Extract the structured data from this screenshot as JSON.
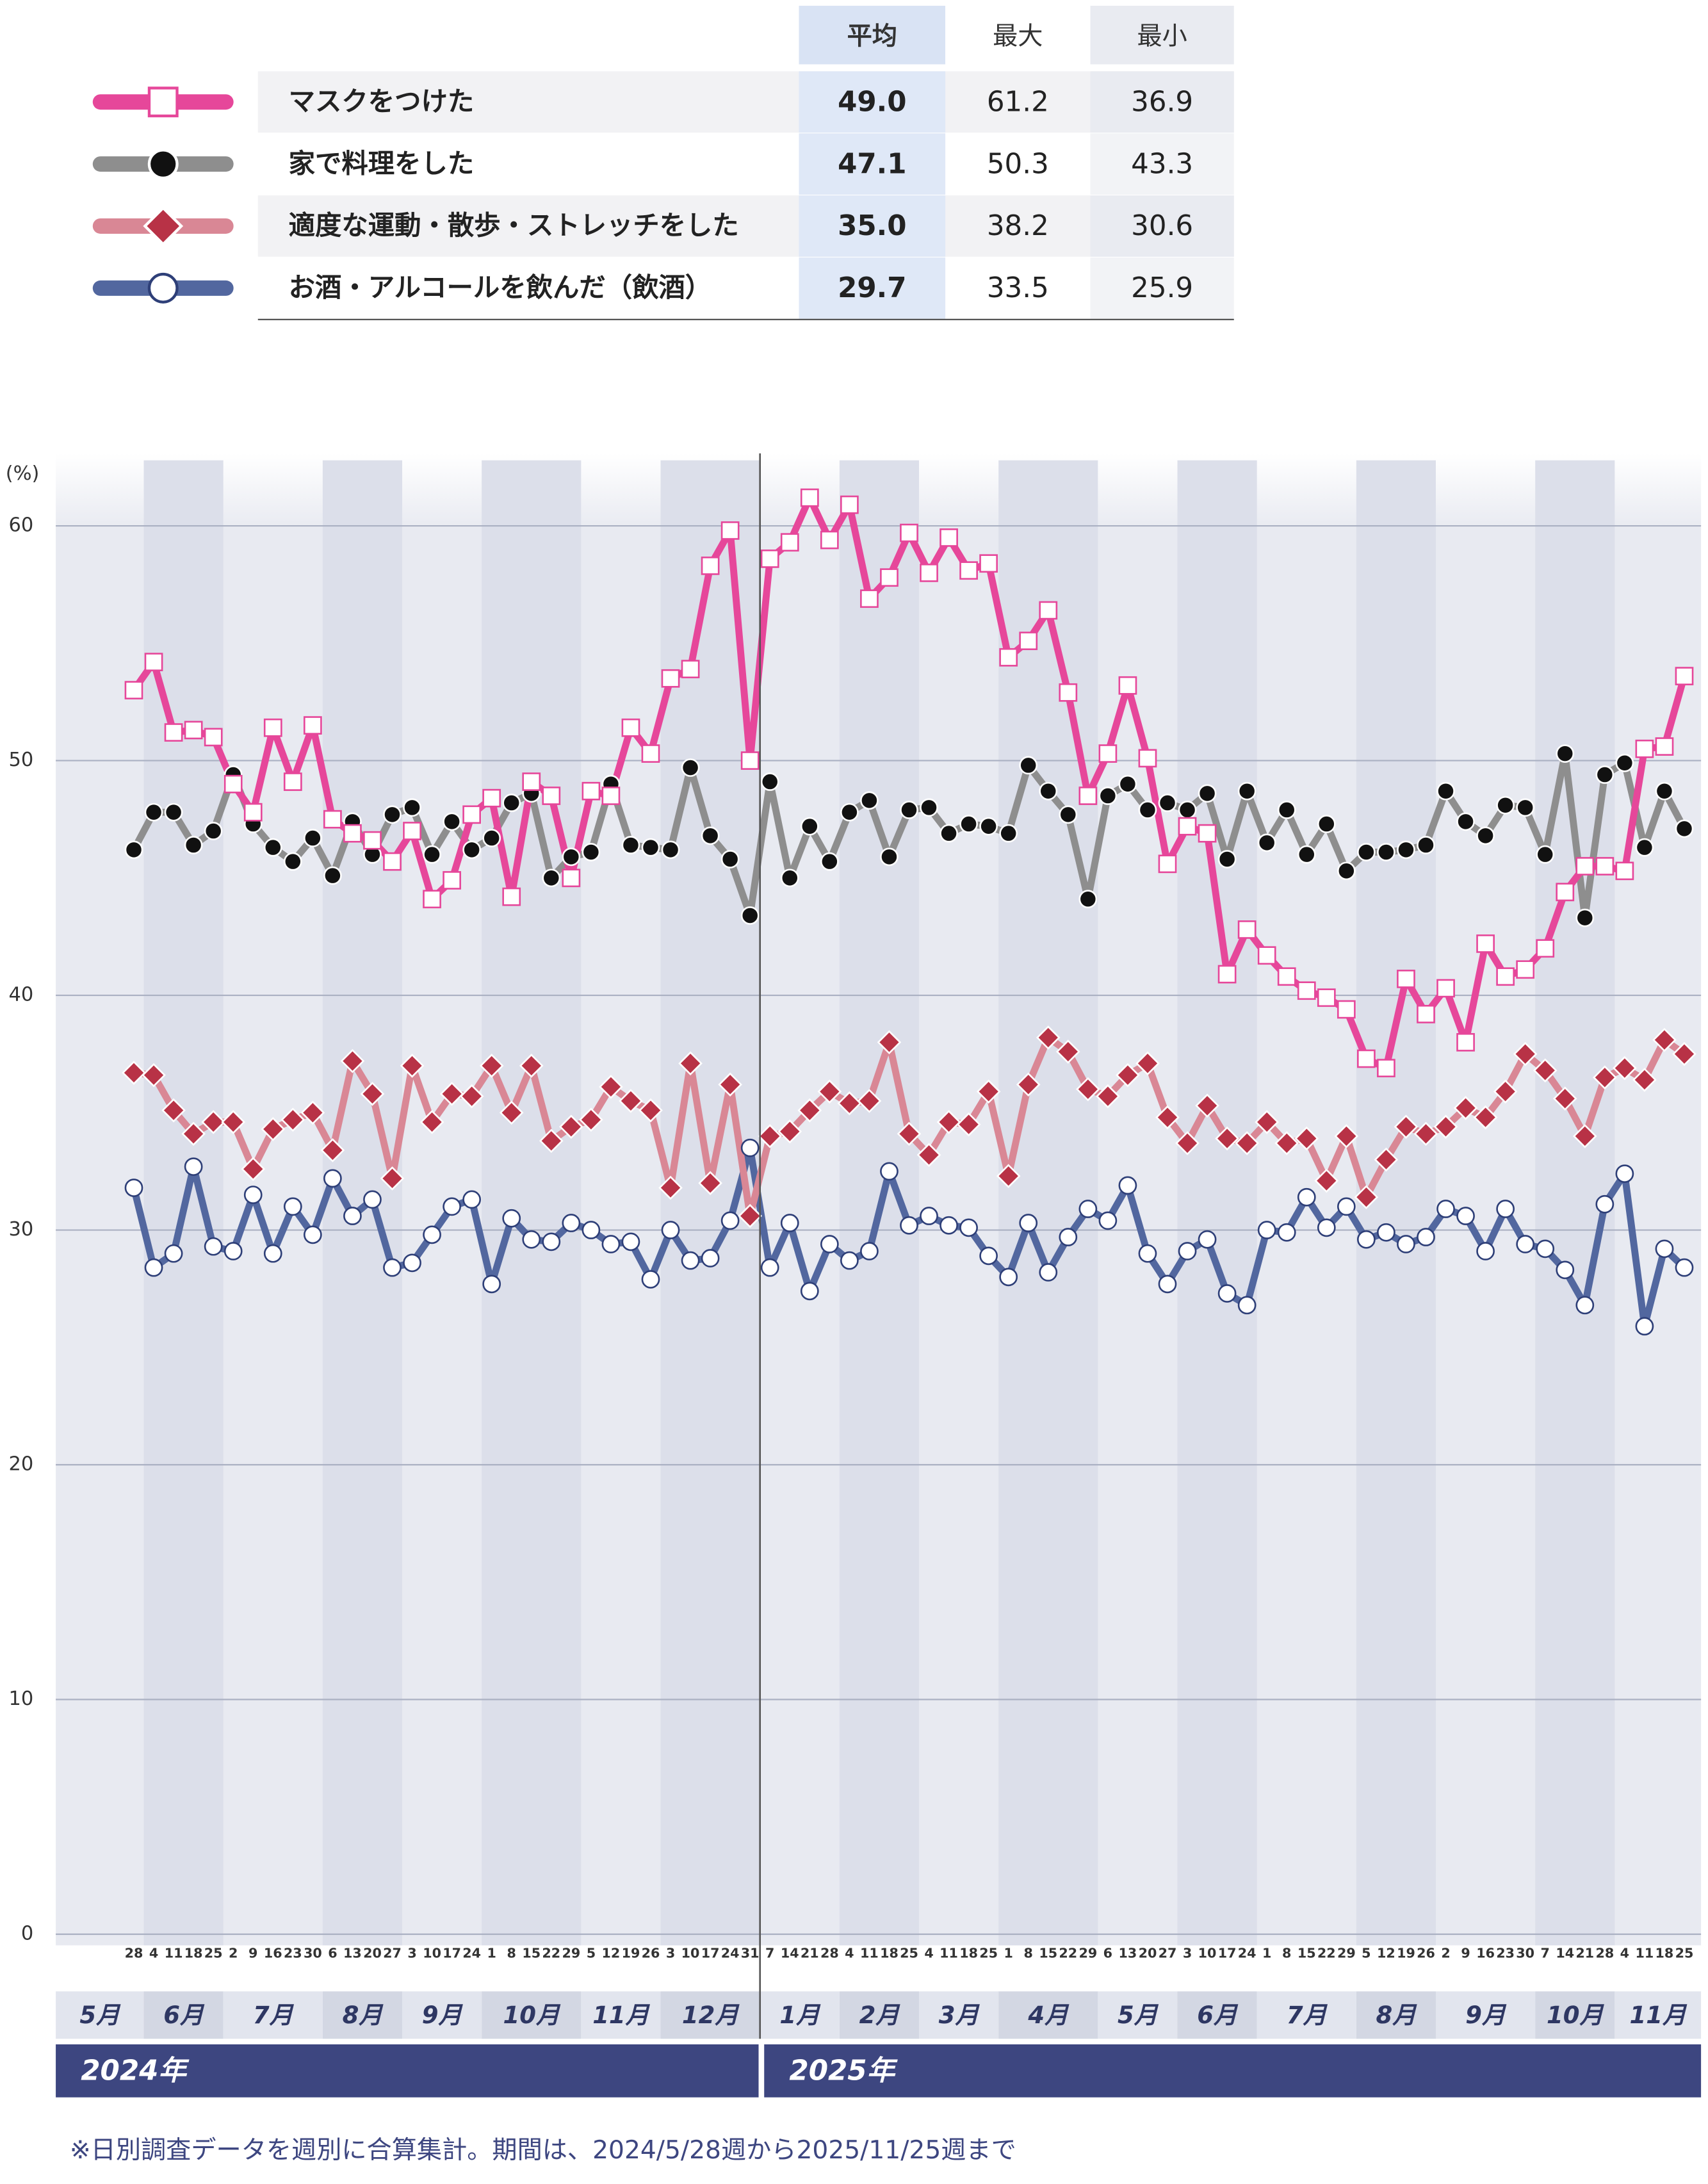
{
  "chart_data": {
    "type": "line",
    "y_unit": "(%)",
    "footnote": "※日別調査データを週別に合算集計。期間は、2024/5/28週から2025/11/25週まで",
    "table": {
      "columns": [
        "平均",
        "最大",
        "最小"
      ]
    },
    "categories": [
      "28",
      "4",
      "11",
      "18",
      "25",
      "2",
      "9",
      "16",
      "23",
      "30",
      "6",
      "13",
      "20",
      "27",
      "3",
      "10",
      "17",
      "24",
      "1",
      "8",
      "15",
      "22",
      "29",
      "5",
      "12",
      "19",
      "26",
      "3",
      "10",
      "17",
      "24",
      "31",
      "7",
      "14",
      "21",
      "28",
      "4",
      "11",
      "18",
      "25",
      "4",
      "11",
      "18",
      "25",
      "1",
      "8",
      "15",
      "22",
      "29",
      "6",
      "13",
      "20",
      "27",
      "3",
      "10",
      "17",
      "24",
      "1",
      "8",
      "15",
      "22",
      "29",
      "5",
      "12",
      "19",
      "26",
      "2",
      "9",
      "16",
      "23",
      "30",
      "7",
      "14",
      "21",
      "28",
      "4",
      "11",
      "18",
      "25"
    ],
    "months": [
      "5月",
      "6月",
      "7月",
      "8月",
      "9月",
      "10月",
      "11月",
      "12月",
      "1月",
      "2月",
      "3月",
      "4月",
      "5月",
      "6月",
      "7月",
      "8月",
      "9月",
      "10月",
      "11月"
    ],
    "years": [
      "2024年",
      "2025年"
    ],
    "ylim": [
      0,
      60
    ],
    "yticks": [
      0,
      10,
      20,
      30,
      40,
      50,
      60
    ],
    "grid": true,
    "series": [
      {
        "name": "マスクをつけた",
        "color": "#e6479a",
        "marker": "square",
        "marker_fill": "#ffffff",
        "marker_stroke": "#e6479a",
        "stats": [
          "49.0",
          "61.2",
          "36.9"
        ],
        "values": [
          53.0,
          54.2,
          51.2,
          51.3,
          51.0,
          49.0,
          47.8,
          51.4,
          49.1,
          51.5,
          47.5,
          46.9,
          46.6,
          45.7,
          47.0,
          44.1,
          44.9,
          47.7,
          48.4,
          44.2,
          49.1,
          48.5,
          45.0,
          48.7,
          48.5,
          51.4,
          50.3,
          53.5,
          53.9,
          58.3,
          59.8,
          50.0,
          58.6,
          59.3,
          61.2,
          59.4,
          60.9,
          56.9,
          57.8,
          59.7,
          58.0,
          59.5,
          58.1,
          58.4,
          54.4,
          55.1,
          56.4,
          52.9,
          48.5,
          50.3,
          53.2,
          50.1,
          45.6,
          47.2,
          46.9,
          40.9,
          42.8,
          41.7,
          40.8,
          40.2,
          39.9,
          39.4,
          37.3,
          36.9,
          40.7,
          39.2,
          40.3,
          38.0,
          42.2,
          40.8,
          41.1,
          42.0,
          44.4,
          45.5,
          45.5,
          45.3,
          50.5,
          50.6,
          53.6
        ]
      },
      {
        "name": "家で料理をした",
        "color": "#8e8e8e",
        "marker": "circle",
        "marker_fill": "#111111",
        "marker_stroke": "#ffffff",
        "stats": [
          "47.1",
          "50.3",
          "43.3"
        ],
        "values": [
          46.2,
          47.8,
          47.8,
          46.4,
          47.0,
          49.4,
          47.3,
          46.3,
          45.7,
          46.7,
          45.1,
          47.4,
          46.0,
          47.7,
          48.0,
          46.0,
          47.4,
          46.2,
          46.7,
          48.2,
          48.6,
          45.0,
          45.9,
          46.1,
          49.0,
          46.4,
          46.3,
          46.2,
          49.7,
          46.8,
          45.8,
          43.4,
          49.1,
          45.0,
          47.2,
          45.7,
          47.8,
          48.3,
          45.9,
          47.9,
          48.0,
          46.9,
          47.3,
          47.2,
          46.9,
          49.8,
          48.7,
          47.7,
          44.1,
          48.5,
          49.0,
          47.9,
          48.2,
          47.9,
          48.6,
          45.8,
          48.7,
          46.5,
          47.9,
          46.0,
          47.3,
          45.3,
          46.1,
          46.1,
          46.2,
          46.4,
          48.7,
          47.4,
          46.8,
          48.1,
          48.0,
          46.0,
          50.3,
          43.3,
          49.4,
          49.9,
          46.3,
          48.7,
          47.1
        ]
      },
      {
        "name": "適度な運動・散歩・ストレッチをした",
        "color": "#d98795",
        "marker": "diamond",
        "marker_fill": "#b83246",
        "marker_stroke": "#ffffff",
        "stats": [
          "35.0",
          "38.2",
          "30.6"
        ],
        "values": [
          36.7,
          36.6,
          35.1,
          34.1,
          34.6,
          34.6,
          32.6,
          34.3,
          34.7,
          35.0,
          33.4,
          37.2,
          35.8,
          32.2,
          37.0,
          34.6,
          35.8,
          35.7,
          37.0,
          35.0,
          37.0,
          33.8,
          34.4,
          34.7,
          36.1,
          35.5,
          35.1,
          31.8,
          37.1,
          32.0,
          36.2,
          30.6,
          34.0,
          34.2,
          35.1,
          35.9,
          35.4,
          35.5,
          38.0,
          34.1,
          33.2,
          34.6,
          34.5,
          35.9,
          32.3,
          36.2,
          38.2,
          37.6,
          36.0,
          35.7,
          36.6,
          37.1,
          34.8,
          33.7,
          35.3,
          33.9,
          33.7,
          34.6,
          33.7,
          33.9,
          32.1,
          34.0,
          31.4,
          33.0,
          34.4,
          34.1,
          34.4,
          35.2,
          34.8,
          35.9,
          37.5,
          36.8,
          35.6,
          34.0,
          36.5,
          36.9,
          36.4,
          38.1,
          37.5
        ]
      },
      {
        "name": "お酒・アルコールを飲んだ（飲酒）",
        "color": "#52679f",
        "marker": "circle",
        "marker_fill": "#ffffff",
        "marker_stroke": "#2e3f78",
        "stats": [
          "29.7",
          "33.5",
          "25.9"
        ],
        "values": [
          31.8,
          28.4,
          29.0,
          32.7,
          29.3,
          29.1,
          31.5,
          29.0,
          31.0,
          29.8,
          32.2,
          30.6,
          31.3,
          28.4,
          28.6,
          29.8,
          31.0,
          31.3,
          27.7,
          30.5,
          29.6,
          29.5,
          30.3,
          30.0,
          29.4,
          29.5,
          27.9,
          30.0,
          28.7,
          28.8,
          30.4,
          33.5,
          28.4,
          30.3,
          27.4,
          29.4,
          28.7,
          29.1,
          32.5,
          30.2,
          30.6,
          30.2,
          30.1,
          28.9,
          28.0,
          30.3,
          28.2,
          29.7,
          30.9,
          30.4,
          31.9,
          29.0,
          27.7,
          29.1,
          29.6,
          27.3,
          26.8,
          30.0,
          29.9,
          31.4,
          30.1,
          31.0,
          29.6,
          29.9,
          29.4,
          29.7,
          30.9,
          30.6,
          29.1,
          30.9,
          29.4,
          29.2,
          28.3,
          26.8,
          31.1,
          32.4,
          25.9,
          29.2,
          28.4
        ]
      }
    ]
  }
}
